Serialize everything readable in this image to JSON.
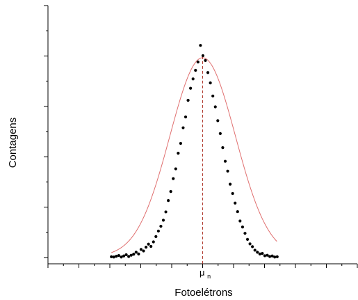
{
  "chart_data": {
    "type": "scatter",
    "xlabel": "Fotoelétrons",
    "ylabel": "Contagens",
    "xlim": [
      0,
      100
    ],
    "ylim": [
      -2.5,
      100
    ],
    "grid": false,
    "tick_labels": {
      "x": [],
      "y": []
    },
    "annotation": {
      "label": "μ",
      "subscript": "n",
      "x": 50
    },
    "fit_curve": {
      "type": "gaussian",
      "center": 50,
      "sigma": 10.6,
      "amplitude": 79,
      "baseline": 0.3,
      "color": "#e07070"
    },
    "series": [
      {
        "points": [
          [
            20.5,
            0.3
          ],
          [
            21.3,
            0.2
          ],
          [
            22.1,
            0.5
          ],
          [
            22.9,
            0.8
          ],
          [
            23.7,
            0.2
          ],
          [
            24.5,
            0.6
          ],
          [
            25.3,
            1.1
          ],
          [
            26.1,
            0.4
          ],
          [
            26.9,
            0.9
          ],
          [
            27.7,
            1.3
          ],
          [
            28.5,
            2.1
          ],
          [
            29.3,
            1.4
          ],
          [
            30.1,
            3.2
          ],
          [
            30.9,
            2.6
          ],
          [
            31.7,
            4.1
          ],
          [
            32.5,
            5.3
          ],
          [
            33.3,
            4.4
          ],
          [
            34.1,
            6.2
          ],
          [
            34.9,
            8.3
          ],
          [
            35.7,
            10.5
          ],
          [
            36.5,
            12.4
          ],
          [
            37.3,
            14.8
          ],
          [
            38.1,
            18.1
          ],
          [
            38.9,
            22.6
          ],
          [
            39.7,
            26.2
          ],
          [
            40.5,
            31.3
          ],
          [
            41.3,
            35.2
          ],
          [
            42.1,
            41.4
          ],
          [
            42.9,
            45.3
          ],
          [
            43.7,
            51.5
          ],
          [
            44.5,
            55.8
          ],
          [
            45.3,
            62.4
          ],
          [
            46.1,
            67.2
          ],
          [
            46.9,
            70.9
          ],
          [
            47.7,
            74.3
          ],
          [
            48.5,
            77.6
          ],
          [
            49.3,
            84.2
          ],
          [
            50.1,
            80.1
          ],
          [
            50.9,
            78.2
          ],
          [
            51.7,
            73.4
          ],
          [
            52.5,
            69.3
          ],
          [
            53.3,
            64.1
          ],
          [
            54.1,
            59.8
          ],
          [
            54.9,
            54.3
          ],
          [
            55.7,
            49.2
          ],
          [
            56.5,
            43.6
          ],
          [
            57.3,
            38.2
          ],
          [
            58.1,
            34.3
          ],
          [
            58.9,
            29.1
          ],
          [
            59.7,
            25.4
          ],
          [
            60.5,
            21.6
          ],
          [
            61.3,
            18.2
          ],
          [
            62.1,
            14.5
          ],
          [
            62.9,
            12.1
          ],
          [
            63.7,
            9.6
          ],
          [
            64.5,
            7.2
          ],
          [
            65.3,
            5.4
          ],
          [
            66.1,
            4.3
          ],
          [
            66.9,
            2.9
          ],
          [
            67.7,
            2.1
          ],
          [
            68.5,
            1.4
          ],
          [
            69.3,
            1.6
          ],
          [
            70.1,
            0.7
          ],
          [
            70.9,
            0.9
          ],
          [
            71.7,
            0.4
          ],
          [
            72.5,
            0.6
          ],
          [
            73.3,
            0.2
          ],
          [
            74.1,
            0.3
          ]
        ]
      }
    ]
  }
}
